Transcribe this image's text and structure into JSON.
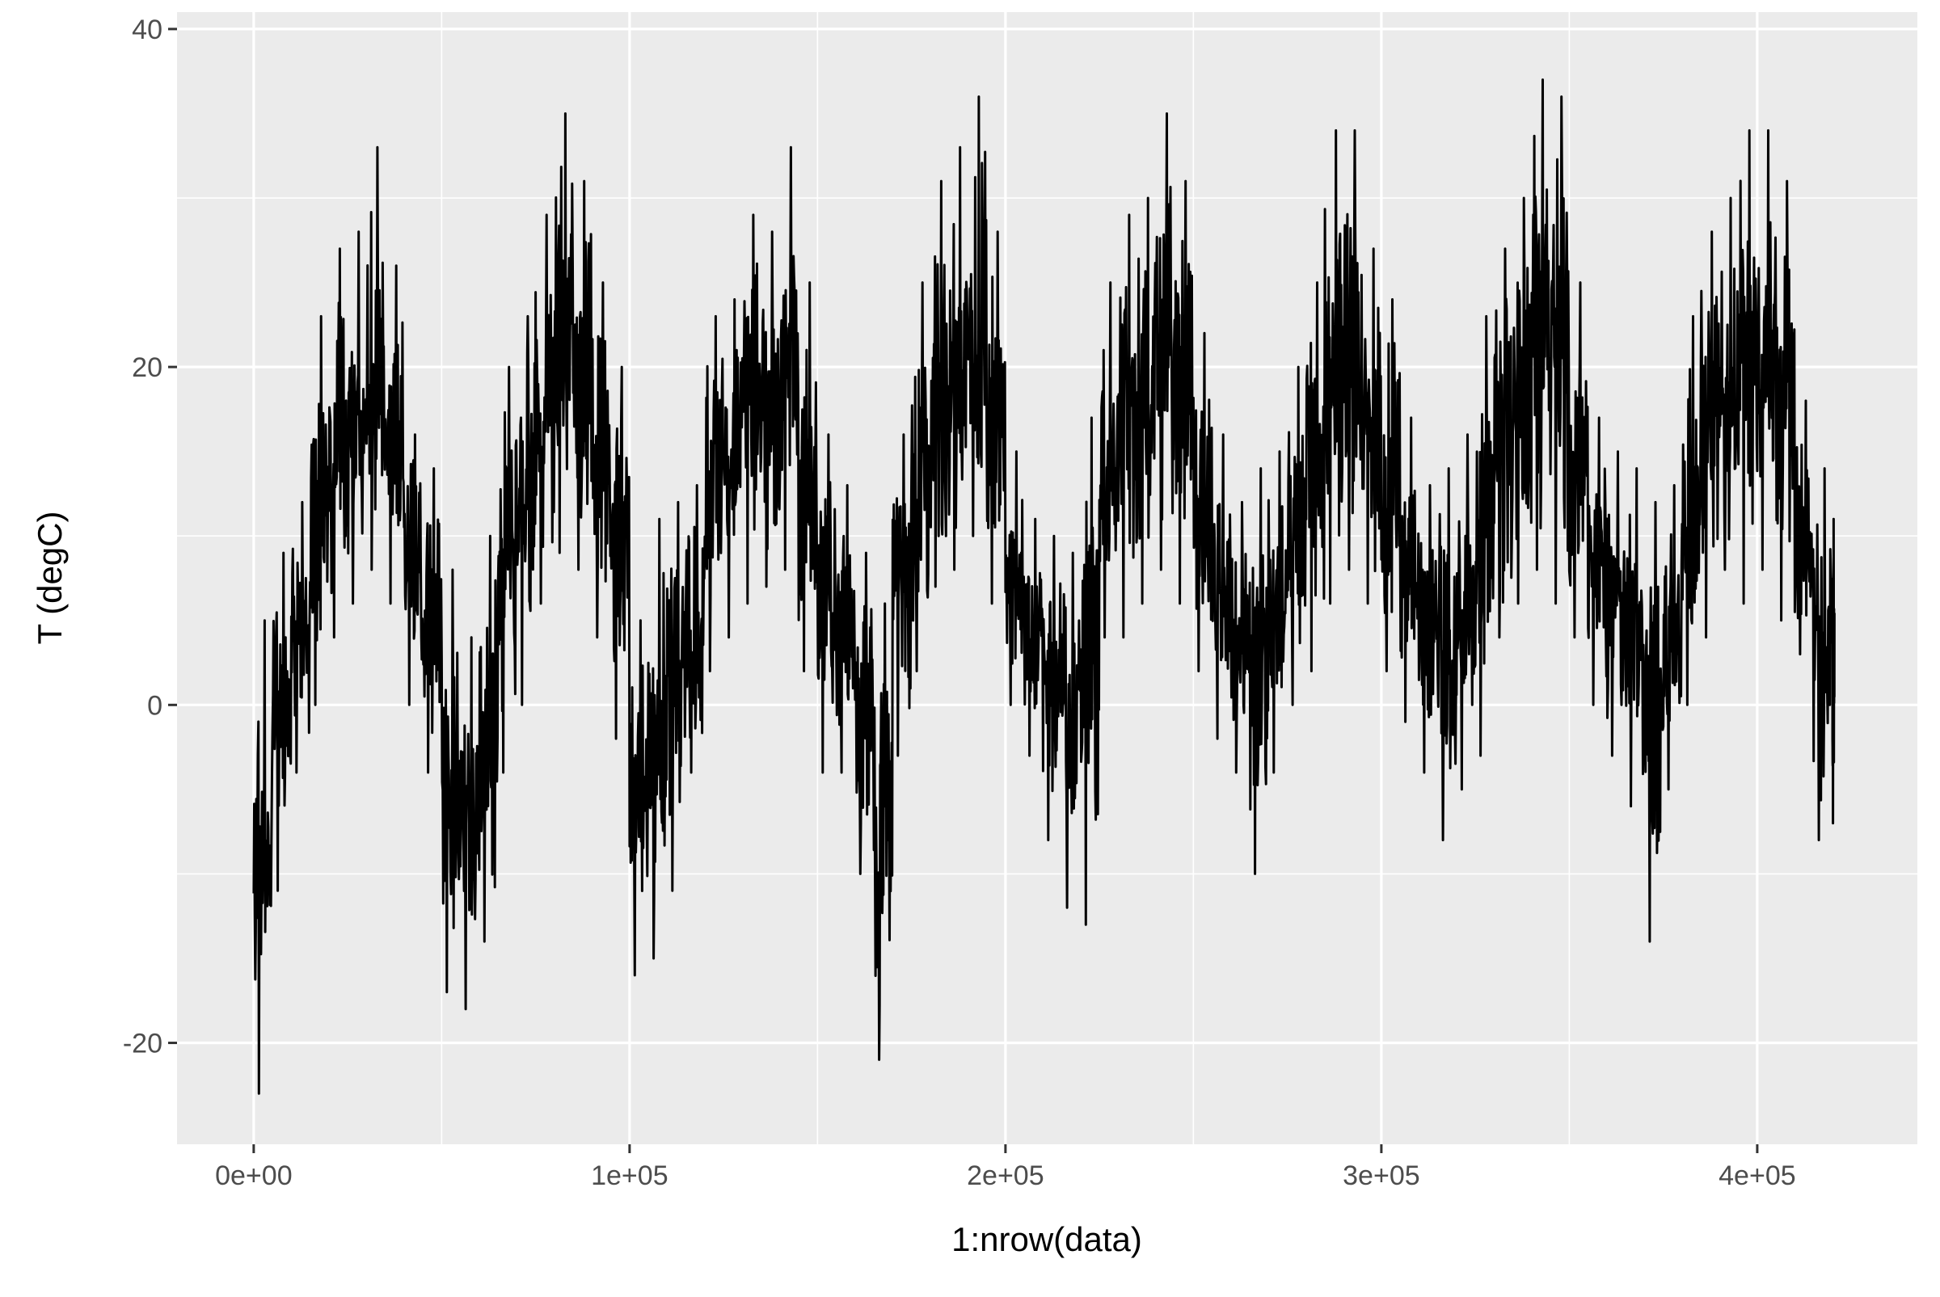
{
  "chart_data": {
    "type": "line",
    "title": "",
    "xlabel": "1:nrow(data)",
    "ylabel": "T (degC)",
    "xlim": [
      -20400,
      442600
    ],
    "ylim": [
      -26,
      41
    ],
    "x_ticks": [
      0,
      100000,
      200000,
      300000,
      400000
    ],
    "x_tick_labels": [
      "0e+00",
      "1e+05",
      "2e+05",
      "3e+05",
      "4e+05"
    ],
    "y_ticks": [
      -20,
      0,
      20,
      40
    ],
    "y_tick_labels": [
      "-20",
      "0",
      "20",
      "40"
    ],
    "grid": true,
    "background": "#EBEBEB",
    "line_color": "#000000",
    "series": [
      {
        "x": [
          0,
          5000,
          10000,
          15000,
          20000,
          25000,
          30000,
          35000,
          40000,
          45000,
          50000,
          55000,
          60000,
          65000,
          70000,
          75000,
          80000,
          85000,
          90000,
          95000,
          100000,
          105000,
          110000,
          115000,
          120000,
          125000,
          130000,
          135000,
          140000,
          145000,
          150000,
          155000,
          160000,
          165000,
          170000,
          175000,
          180000,
          185000,
          190000,
          195000,
          200000,
          205000,
          210000,
          215000,
          220000,
          225000,
          230000,
          235000,
          240000,
          245000,
          250000,
          255000,
          260000,
          265000,
          270000,
          275000,
          280000,
          285000,
          290000,
          295000,
          300000,
          305000,
          310000,
          315000,
          320000,
          325000,
          330000,
          335000,
          340000,
          345000,
          350000,
          355000,
          360000,
          365000,
          370000,
          375000,
          380000,
          385000,
          390000,
          395000,
          400000,
          405000,
          410000,
          415000,
          420000
        ],
        "min": [
          -23,
          -11,
          -4,
          0,
          4,
          6,
          8,
          6,
          0,
          -4,
          -17,
          -18,
          -14,
          -4,
          0,
          6,
          9,
          8,
          4,
          -2,
          -16,
          -15,
          -11,
          -4,
          2,
          4,
          6,
          7,
          8,
          2,
          -4,
          -4,
          -10,
          -21,
          -3,
          2,
          7,
          8,
          10,
          6,
          0,
          -3,
          -8,
          -12,
          -13,
          4,
          4,
          6,
          8,
          6,
          2,
          -2,
          -4,
          -10,
          -4,
          0,
          2,
          6,
          8,
          6,
          2,
          -1,
          -4,
          -8,
          -5,
          -3,
          4,
          6,
          8,
          6,
          4,
          0,
          -3,
          -6,
          -14,
          -5,
          0,
          4,
          8,
          6,
          8,
          5,
          3,
          -8,
          -7
        ],
        "max": [
          5,
          9,
          12,
          23,
          27,
          28,
          33,
          26,
          16,
          14,
          8,
          4,
          10,
          20,
          23,
          29,
          35,
          31,
          25,
          20,
          5,
          11,
          12,
          13,
          23,
          24,
          29,
          28,
          33,
          25,
          16,
          13,
          9,
          6,
          16,
          25,
          31,
          33,
          36,
          28,
          15,
          11,
          10,
          9,
          17,
          25,
          29,
          30,
          35,
          31,
          22,
          16,
          12,
          14,
          15,
          20,
          25,
          34,
          34,
          27,
          24,
          17,
          13,
          14,
          16,
          23,
          27,
          30,
          37,
          36,
          25,
          17,
          15,
          14,
          12,
          13,
          23,
          28,
          30,
          34,
          34,
          31,
          18,
          14,
          11
        ]
      }
    ]
  }
}
